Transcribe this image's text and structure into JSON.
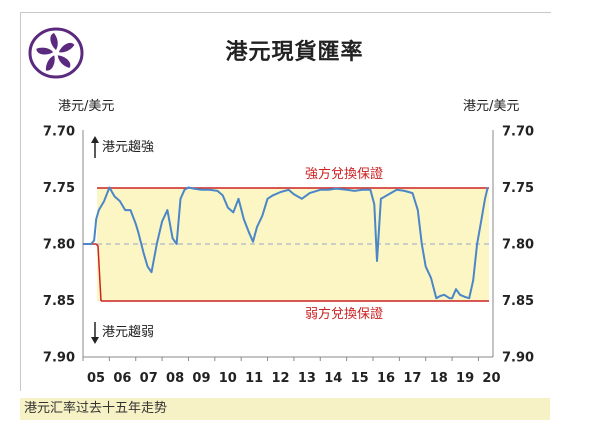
{
  "page": {
    "title": "港元現貨匯率",
    "caption": "港元汇率过去十五年走势"
  },
  "logo": {
    "icon": "bauhinia-icon",
    "color": "#5b2a7e"
  },
  "chart_data": {
    "type": "line",
    "title": "港元現貨匯率",
    "ylabel_left": "港元/美元",
    "ylabel_right": "港元/美元",
    "ylim": [
      7.7,
      7.9
    ],
    "y_inverted": true,
    "yticks": [
      "7.70",
      "7.75",
      "7.80",
      "7.85",
      "7.90"
    ],
    "yticks_right": [
      "7.70",
      "7.75",
      "7.80",
      "7.85",
      "7.90"
    ],
    "xlim": [
      2005.0,
      2020.4
    ],
    "xticks": [
      "05",
      "06",
      "07",
      "08",
      "09",
      "10",
      "11",
      "12",
      "13",
      "14",
      "15",
      "16",
      "17",
      "18",
      "19",
      "20"
    ],
    "bands": {
      "strong": {
        "label": "強方兌換保證",
        "value": 7.75,
        "color": "#cc2222"
      },
      "weak": {
        "label": "弱方兌換保證",
        "value": 7.85,
        "color": "#cc2222"
      },
      "fill": "#fbf6c4"
    },
    "reference_line": {
      "value": 7.8,
      "style": "dashed"
    },
    "annotations": {
      "up_arrow": {
        "text": "港元趨強"
      },
      "down_arrow": {
        "text": "港元趨弱"
      }
    },
    "colors": {
      "line": "#4a86c8",
      "band": "#cc2222",
      "fill": "#fbf6c4"
    },
    "series": [
      {
        "x": [
          2005.0,
          2005.3,
          2005.42,
          2005.5,
          2005.6,
          2005.8,
          2006.0,
          2006.2,
          2006.4,
          2006.6,
          2006.8,
          2007.0,
          2007.1,
          2007.3,
          2007.45,
          2007.6,
          2007.8,
          2008.0,
          2008.2,
          2008.4,
          2008.55,
          2008.7,
          2008.85,
          2009.0,
          2009.2,
          2009.5,
          2009.8,
          2010.1,
          2010.3,
          2010.5,
          2010.7,
          2010.9,
          2011.1,
          2011.3,
          2011.45,
          2011.6,
          2011.8,
          2012.0,
          2012.2,
          2012.5,
          2012.8,
          2013.0,
          2013.3,
          2013.6,
          2014.0,
          2014.3,
          2014.6,
          2015.0,
          2015.3,
          2015.6,
          2015.9,
          2016.05,
          2016.15,
          2016.3,
          2016.6,
          2016.9,
          2017.2,
          2017.5,
          2017.7,
          2017.85,
          2018.0,
          2018.2,
          2018.4,
          2018.55,
          2018.7,
          2018.9,
          2019.0,
          2019.15,
          2019.3,
          2019.5,
          2019.65,
          2019.8,
          2019.95,
          2020.1,
          2020.25,
          2020.35
        ],
        "y": [
          7.8,
          7.8,
          7.797,
          7.778,
          7.77,
          7.762,
          7.75,
          7.758,
          7.762,
          7.77,
          7.77,
          7.782,
          7.79,
          7.808,
          7.82,
          7.825,
          7.8,
          7.78,
          7.77,
          7.795,
          7.8,
          7.76,
          7.752,
          7.75,
          7.751,
          7.752,
          7.752,
          7.753,
          7.757,
          7.768,
          7.772,
          7.76,
          7.778,
          7.79,
          7.798,
          7.785,
          7.775,
          7.76,
          7.757,
          7.754,
          7.752,
          7.756,
          7.76,
          7.755,
          7.752,
          7.752,
          7.751,
          7.752,
          7.753,
          7.752,
          7.752,
          7.765,
          7.815,
          7.76,
          7.756,
          7.752,
          7.753,
          7.755,
          7.77,
          7.8,
          7.82,
          7.83,
          7.848,
          7.846,
          7.845,
          7.848,
          7.848,
          7.84,
          7.845,
          7.847,
          7.848,
          7.832,
          7.8,
          7.78,
          7.76,
          7.75
        ]
      }
    ]
  }
}
